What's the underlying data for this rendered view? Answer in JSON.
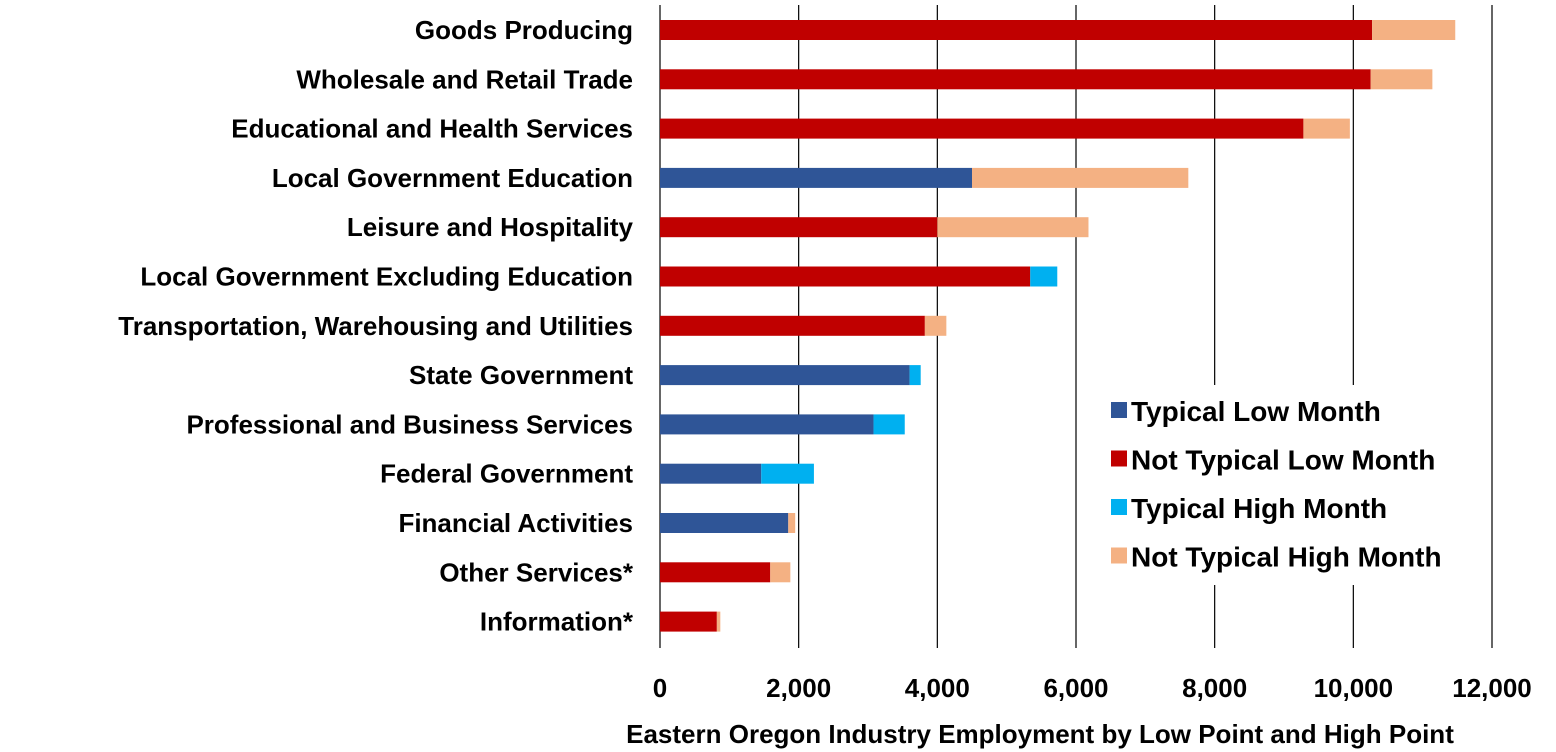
{
  "chart_data": {
    "type": "bar",
    "orientation": "horizontal",
    "stacked": true,
    "xlabel": "Eastern Oregon Industry Employment by Low Point and High Point",
    "ylabel": "",
    "xlim": [
      0,
      12000
    ],
    "xticks": [
      0,
      2000,
      4000,
      6000,
      8000,
      10000,
      12000
    ],
    "xtick_labels": [
      "0",
      "2,000",
      "4,000",
      "6,000",
      "8,000",
      "10,000",
      "12,000"
    ],
    "grid": "vertical",
    "legend_position": "right",
    "legend": [
      {
        "key": "typical_low",
        "label": "Typical Low Month",
        "color": "#2F5597"
      },
      {
        "key": "not_typical_low",
        "label": "Not Typical Low Month",
        "color": "#C00000"
      },
      {
        "key": "typical_high",
        "label": "Typical High Month",
        "color": "#00B0F0"
      },
      {
        "key": "not_typical_high",
        "label": "Not Typical High Month",
        "color": "#F4B183"
      }
    ],
    "categories": [
      {
        "name": "Goods Producing",
        "low": 10270,
        "low_type": "not_typical_low",
        "high": 11470,
        "high_type": "not_typical_high"
      },
      {
        "name": "Wholesale and Retail Trade",
        "low": 10250,
        "low_type": "not_typical_low",
        "high": 11140,
        "high_type": "not_typical_high"
      },
      {
        "name": "Educational and Health Services",
        "low": 9280,
        "low_type": "not_typical_low",
        "high": 9950,
        "high_type": "not_typical_high"
      },
      {
        "name": "Local Government Education",
        "low": 4500,
        "low_type": "typical_low",
        "high": 7620,
        "high_type": "not_typical_high"
      },
      {
        "name": "Leisure and Hospitality",
        "low": 4000,
        "low_type": "not_typical_low",
        "high": 6180,
        "high_type": "not_typical_high"
      },
      {
        "name": "Local Government Excluding Education",
        "low": 5340,
        "low_type": "not_typical_low",
        "high": 5730,
        "high_type": "typical_high"
      },
      {
        "name": "Transportation, Warehousing and Utilities",
        "low": 3820,
        "low_type": "not_typical_low",
        "high": 4130,
        "high_type": "not_typical_high"
      },
      {
        "name": "State Government",
        "low": 3600,
        "low_type": "typical_low",
        "high": 3760,
        "high_type": "typical_high"
      },
      {
        "name": "Professional and Business Services",
        "low": 3080,
        "low_type": "typical_low",
        "high": 3530,
        "high_type": "typical_high"
      },
      {
        "name": "Federal Government",
        "low": 1460,
        "low_type": "typical_low",
        "high": 2220,
        "high_type": "typical_high"
      },
      {
        "name": "Financial Activities",
        "low": 1850,
        "low_type": "typical_low",
        "high": 1950,
        "high_type": "not_typical_high"
      },
      {
        "name": "Other Services*",
        "low": 1590,
        "low_type": "not_typical_low",
        "high": 1880,
        "high_type": "not_typical_high"
      },
      {
        "name": "Information*",
        "low": 820,
        "low_type": "not_typical_low",
        "high": 870,
        "high_type": "not_typical_high"
      }
    ]
  }
}
